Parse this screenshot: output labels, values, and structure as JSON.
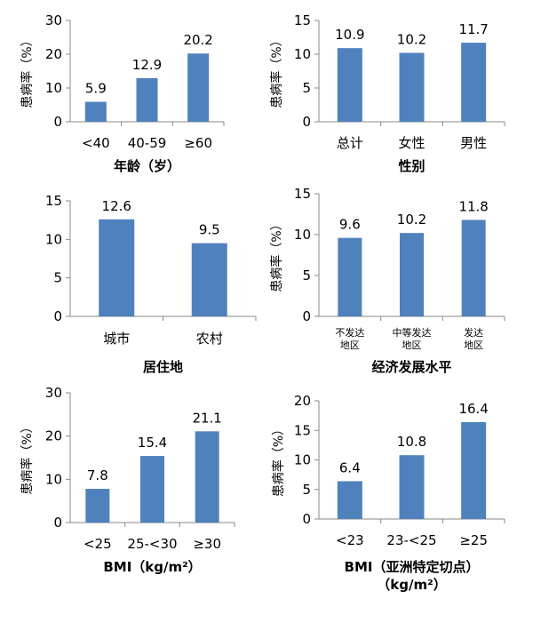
{
  "chart_data": [
    {
      "type": "bar",
      "ylabel": "患病率（%）",
      "xlabel": "年龄（岁）",
      "ylim": [
        0,
        30
      ],
      "yticks": [
        0,
        10,
        20,
        30
      ],
      "categories": [
        "<40",
        "40-59",
        "≥60"
      ],
      "values": [
        5.9,
        12.9,
        20.2
      ],
      "grid": false,
      "bar_color": "#4f81bd"
    },
    {
      "type": "bar",
      "ylabel": "患病率（%）",
      "xlabel": "性别",
      "ylim": [
        0,
        15
      ],
      "yticks": [
        0,
        5,
        10,
        15
      ],
      "categories": [
        "总计",
        "女性",
        "男性"
      ],
      "values": [
        10.9,
        10.2,
        11.7
      ],
      "grid": false,
      "bar_color": "#4f81bd"
    },
    {
      "type": "bar",
      "ylabel": "",
      "xlabel": "居住地",
      "ylim": [
        0,
        15
      ],
      "yticks": [
        0,
        5,
        10,
        15
      ],
      "categories": [
        "城市",
        "农村"
      ],
      "values": [
        12.6,
        9.5
      ],
      "grid": false,
      "bar_color": "#4f81bd"
    },
    {
      "type": "bar",
      "ylabel": "患病率（%）",
      "xlabel": "经济发展水平",
      "ylim": [
        0,
        15
      ],
      "yticks": [
        0,
        5,
        10,
        15
      ],
      "categories": [
        "不发达\n地区",
        "中等发达\n地区",
        "发达\n地区"
      ],
      "values": [
        9.6,
        10.2,
        11.8
      ],
      "grid": false,
      "bar_color": "#4f81bd"
    },
    {
      "type": "bar",
      "ylabel": "患病率（%）",
      "xlabel": "BMI（kg/m²）",
      "ylim": [
        0,
        30
      ],
      "yticks": [
        0,
        10,
        20,
        30
      ],
      "categories": [
        "<25",
        "25-<30",
        "≥30"
      ],
      "values": [
        7.8,
        15.4,
        21.1
      ],
      "grid": false,
      "bar_color": "#4f81bd"
    },
    {
      "type": "bar",
      "ylabel": "患病率（%）",
      "xlabel": "BMI（亚洲特定切点）\n（kg/m²）",
      "ylim": [
        0,
        20
      ],
      "yticks": [
        0,
        5,
        10,
        15,
        20
      ],
      "categories": [
        "<23",
        "23-<25",
        "≥25"
      ],
      "values": [
        6.4,
        10.8,
        16.4
      ],
      "grid": false,
      "bar_color": "#4f81bd"
    }
  ]
}
